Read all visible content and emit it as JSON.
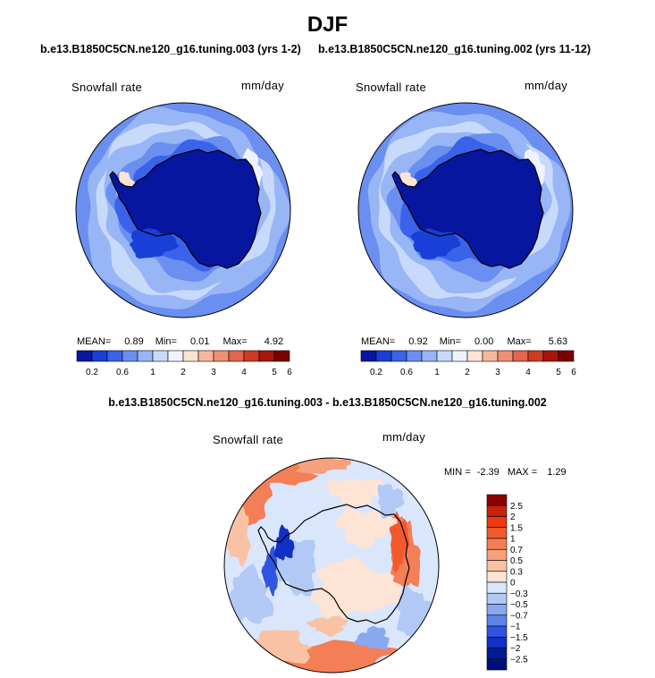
{
  "season": "DJF",
  "run_left": "b.e13.B1850C5CN.ne120_g16.tuning.003 (yrs 1-2)",
  "run_right": "b.e13.B1850C5CN.ne120_g16.tuning.002 (yrs 11-12)",
  "diff_title": "b.e13.B1850C5CN.ne120_g16.tuning.003 - b.e13.B1850C5CN.ne120_g16.tuning.002",
  "chart_data": [
    {
      "type": "heatmap",
      "title": "Snowfall rate",
      "units": "mm/day",
      "projection": "polar stereographic, Southern Hemisphere",
      "stats": {
        "mean_label": "MEAN=",
        "mean": "0.89",
        "min_label": "Min=",
        "min": "0.01",
        "max_label": "Max=",
        "max": "4.92"
      },
      "levels": [
        "0.2",
        "0.6",
        "1",
        "2",
        "3",
        "4",
        "5",
        "6"
      ],
      "colors": [
        "#06169e",
        "#1a3fd6",
        "#3a63ea",
        "#6a8ff0",
        "#98b6f5",
        "#c8dafb",
        "#eef3ff",
        "#fde3d4",
        "#f6b89c",
        "#ee9074",
        "#e3654d",
        "#cc3c24",
        "#a9150c",
        "#7a0000"
      ]
    },
    {
      "type": "heatmap",
      "title": "Snowfall rate",
      "units": "mm/day",
      "projection": "polar stereographic, Southern Hemisphere",
      "stats": {
        "mean_label": "MEAN=",
        "mean": "0.92",
        "min_label": "Min=",
        "min": "0.00",
        "max_label": "Max=",
        "max": "5.63"
      },
      "levels": [
        "0.2",
        "0.6",
        "1",
        "2",
        "3",
        "4",
        "5",
        "6"
      ],
      "colors": [
        "#06169e",
        "#1a3fd6",
        "#3a63ea",
        "#6a8ff0",
        "#98b6f5",
        "#c8dafb",
        "#eef3ff",
        "#fde3d4",
        "#f6b89c",
        "#ee9074",
        "#e3654d",
        "#cc3c24",
        "#a9150c",
        "#7a0000"
      ]
    },
    {
      "type": "heatmap",
      "title": "Snowfall rate",
      "units": "mm/day",
      "projection": "polar stereographic, Southern Hemisphere",
      "stats": {
        "min_label": "MIN =",
        "min": "-2.39",
        "max_label": "MAX =",
        "max": "1.29"
      },
      "levels": [
        "2.5",
        "2",
        "1.5",
        "1",
        "0.7",
        "0.5",
        "0.3",
        "0",
        "−0.3",
        "−0.5",
        "−0.7",
        "−1",
        "−1.5",
        "−2",
        "−2.5"
      ],
      "colors": [
        "#8b0000",
        "#c8220a",
        "#ee3a10",
        "#f25a2e",
        "#f47e55",
        "#f6a07c",
        "#f9c2a4",
        "#fde4d4",
        "#dae6fb",
        "#b2c9f5",
        "#8aa8ef",
        "#5d82ea",
        "#2f55e0",
        "#1030c6",
        "#001c96",
        "#00107a"
      ]
    }
  ]
}
